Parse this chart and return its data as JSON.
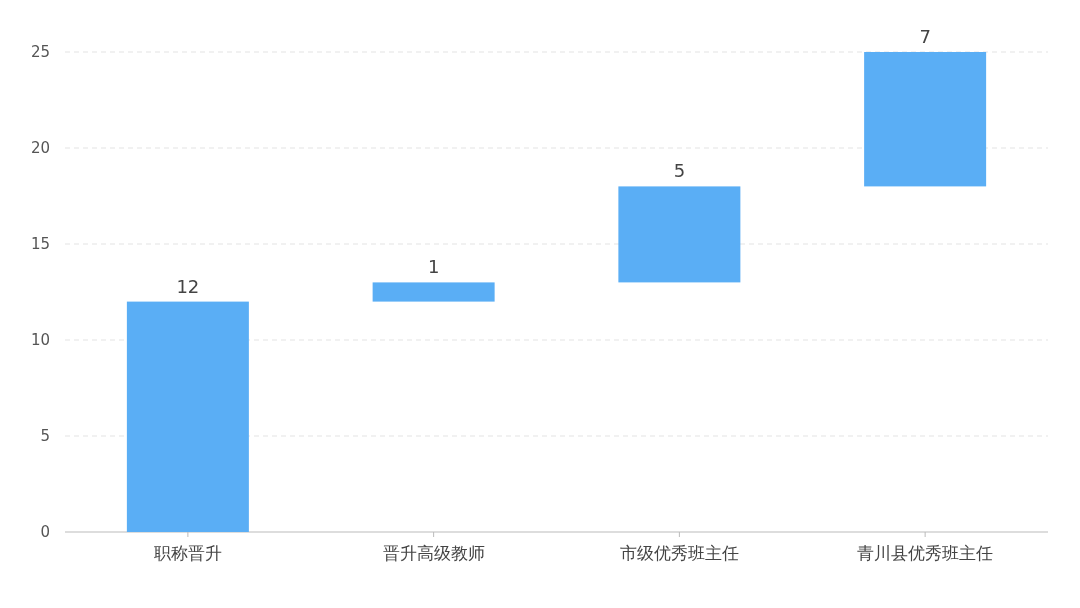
{
  "chart_data": {
    "type": "bar",
    "categories": [
      "职称晋升",
      "晋升高级教师",
      "市级优秀班主任",
      "青川县优秀班主任"
    ],
    "values": [
      12,
      1,
      5,
      7
    ],
    "base": [
      0,
      12,
      13,
      18
    ],
    "color": "#5aaef5",
    "ylim": [
      0,
      25
    ],
    "yticks": [
      0,
      5,
      10,
      15,
      20,
      25
    ],
    "grid": "y",
    "data_labels": true
  }
}
